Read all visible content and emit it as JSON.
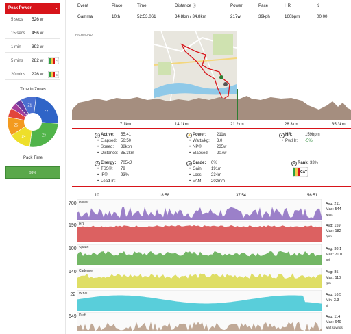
{
  "peak_power": {
    "title": "Peak Power",
    "rows": [
      {
        "duration": "5 secs",
        "value": "526 w"
      },
      {
        "duration": "15 secs",
        "value": "456 w"
      },
      {
        "duration": "1 min",
        "value": "393 w"
      },
      {
        "duration": "5 mins",
        "value": "282 w"
      },
      {
        "duration": "20 mins",
        "value": "226 w"
      }
    ]
  },
  "time_in_zones": {
    "title": "Time in Zones",
    "zones": [
      {
        "label": "Z1",
        "fraction": 0.1,
        "color": "#4a6fd0"
      },
      {
        "label": "Z2",
        "fraction": 0.24,
        "color": "#2f64c7"
      },
      {
        "label": "Z3",
        "fraction": 0.26,
        "color": "#51b44a"
      },
      {
        "label": "Z4",
        "fraction": 0.14,
        "color": "#eedf2a"
      },
      {
        "label": "Z5",
        "fraction": 0.12,
        "color": "#f39a1f"
      },
      {
        "label": "",
        "fraction": 0.06,
        "color": "#e2453c"
      },
      {
        "label": "",
        "fraction": 0.04,
        "color": "#a33d9a"
      },
      {
        "label": "",
        "fraction": 0.04,
        "color": "#6a3b9e"
      }
    ]
  },
  "pack_time": {
    "title": "Pack Time",
    "value": "99%"
  },
  "header": {
    "cols": [
      "Event",
      "Place",
      "Time",
      "Distance",
      "Power",
      "Pace",
      "HR",
      ""
    ],
    "vals": [
      "Gamma",
      "10th",
      "52:53.061",
      "34.8km / 34.8km",
      "217w",
      "39kph",
      "160bpm",
      "00:00"
    ]
  },
  "map": {
    "label": "RICHMOND"
  },
  "distance_labels": [
    "7.1km",
    "14.1km",
    "21.2km",
    "28.3km",
    "35.3km"
  ],
  "stats": {
    "active_label": "Active:",
    "active_value": "55:41",
    "elapsed_label": "Elapsed:",
    "elapsed_value": "56:50",
    "speed_label": "Speed:",
    "speed_value": "38kph",
    "distance_label": "Distance:",
    "distance_value": "35.3km",
    "power_label": "Power:",
    "power_value": "211w",
    "wkg_label": "Watts/kg:",
    "wkg_value": "3.0",
    "np_label": "NP®:",
    "np_value": "235w",
    "pelapsed_label": "Elapsed:",
    "pelapsed_value": "207w",
    "hr_label": "HR:",
    "hr_value": "159bpm",
    "pwhr_label": "Pw:Hr:",
    "pwhr_value": "-5%",
    "energy_label": "Energy:",
    "energy_value": "705kJ",
    "tss_label": "TSS®:",
    "tss_value": "79",
    "if_label": "IF®:",
    "if_value": "93%",
    "leadin_label": "Lead-in:",
    "leadin_value": "-",
    "grade_label": "Grade:",
    "grade_value": "0%",
    "gain_label": "Gain:",
    "gain_value": "191m",
    "loss_label": "Loss:",
    "loss_value": "234m",
    "vam_label": "VAM:",
    "vam_value": "202m/h",
    "rank_label": "Rank:",
    "rank_value": "33%",
    "rank_badge": "CAT"
  },
  "time_labels": [
    "10",
    "18:58",
    "37:54",
    "56:51"
  ],
  "panels": [
    {
      "name": "Power",
      "ymax": "700",
      "summary": [
        "Avg: 211",
        "Max: 544",
        "watts"
      ],
      "color": "#8a6abf"
    },
    {
      "name": "HR",
      "ymax": "190",
      "summary": [
        "Avg: 159",
        "Max: 182",
        "bpm"
      ],
      "color": "#d64545"
    },
    {
      "name": "Speed",
      "ymax": "100",
      "summary": [
        "Avg: 38.1",
        "Max: 70.0",
        "kph"
      ],
      "color": "#5aaa4a"
    },
    {
      "name": "Cadence",
      "ymax": "140",
      "summary": [
        "Avg: 85",
        "Max: 110",
        "rpm"
      ],
      "color": "#d9d84a"
    },
    {
      "name": "W'bal",
      "ymax": "22",
      "summary": [
        "Avg: 16.5",
        "Min: 3.3",
        "kj"
      ],
      "color": "#3cc6d3"
    },
    {
      "name": "Draft",
      "ymax": "649",
      "summary": [
        "Avg: 114",
        "Max: 649",
        "watt savings"
      ],
      "color": "#b59a85"
    }
  ]
}
